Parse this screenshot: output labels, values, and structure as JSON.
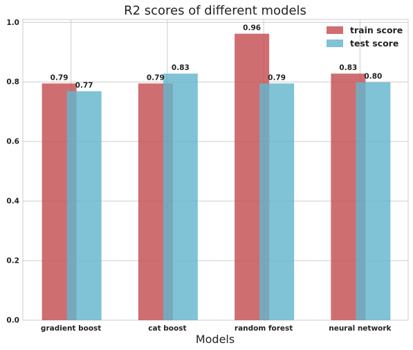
{
  "chart_data": {
    "type": "bar",
    "title": "R2 scores of different models",
    "xlabel": "Models",
    "ylabel": "",
    "categories": [
      "gradient boost",
      "cat boost",
      "random forest",
      "neural network"
    ],
    "ylim": [
      0,
      1.01
    ],
    "yticks": [
      "0.0",
      "0.2",
      "0.4",
      "0.6",
      "0.8",
      "1.0"
    ],
    "grid": true,
    "legend_position": "top-right",
    "series": [
      {
        "name": "train score",
        "color": "#c44e52",
        "values": [
          0.795,
          0.795,
          0.962,
          0.828
        ],
        "labels": [
          "0.79",
          "0.79",
          "0.96",
          "0.83"
        ]
      },
      {
        "name": "test score",
        "color": "#64b5cd",
        "values": [
          0.769,
          0.828,
          0.795,
          0.799
        ],
        "labels": [
          "0.77",
          "0.83",
          "0.79",
          "0.80"
        ]
      }
    ]
  }
}
